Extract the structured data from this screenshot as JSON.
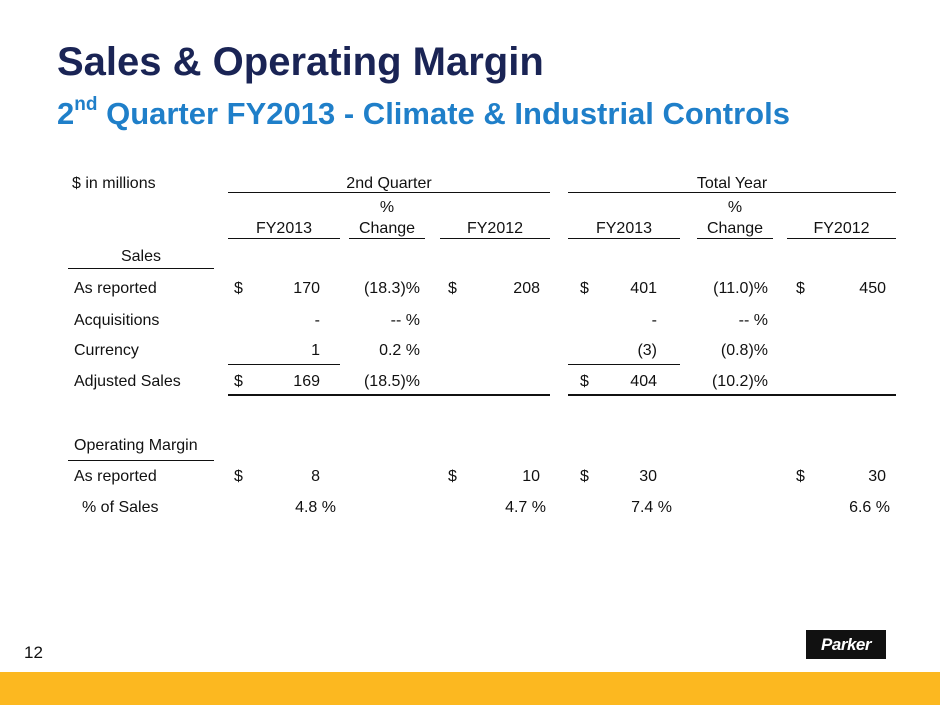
{
  "slide": {
    "title": "Sales & Operating Margin",
    "subtitle_main": "2",
    "subtitle_sup": "nd",
    "subtitle_rest": " Quarter FY2013 - Climate & Industrial Controls",
    "page_number": "12",
    "logo_text": "Parker"
  },
  "table": {
    "units_label": "$  in millions",
    "group_q2": "2nd Quarter",
    "group_year": "Total Year",
    "col_fy2013": "FY2013",
    "col_pct_symbol": "%",
    "col_change": "Change",
    "col_fy2012": "FY2012",
    "section_sales": "Sales",
    "section_margin": "Operating Margin",
    "dollar": "$",
    "rows": {
      "as_reported": {
        "label": "As reported",
        "q_fy13": "170",
        "q_chg": "(18.3)%",
        "q_fy12": "208",
        "y_fy13": "401",
        "y_chg": "(11.0)%",
        "y_fy12": "450"
      },
      "acquisitions": {
        "label": "Acquisitions",
        "q_fy13": "-",
        "q_chg": "-- %",
        "y_fy13": "-",
        "y_chg": "-- %"
      },
      "currency": {
        "label": "Currency",
        "q_fy13": "1",
        "q_chg": "0.2 %",
        "y_fy13": "(3)",
        "y_chg": "(0.8)%"
      },
      "adjusted": {
        "label": "Adjusted Sales",
        "q_fy13": "169",
        "q_chg": "(18.5)%",
        "y_fy13": "404",
        "y_chg": "(10.2)%"
      },
      "om_reported": {
        "label": "As reported",
        "q_fy13": "8",
        "q_fy12": "10",
        "y_fy13": "30",
        "y_fy12": "30"
      },
      "pct_sales": {
        "label": "% of Sales",
        "q_fy13": "4.8 %",
        "q_fy12": "4.7 %",
        "y_fy13": "7.4 %",
        "y_fy12": "6.6 %"
      }
    }
  },
  "colors": {
    "title": "#1a2455",
    "subtitle": "#1f7fc9",
    "footer": "#fcb820"
  }
}
